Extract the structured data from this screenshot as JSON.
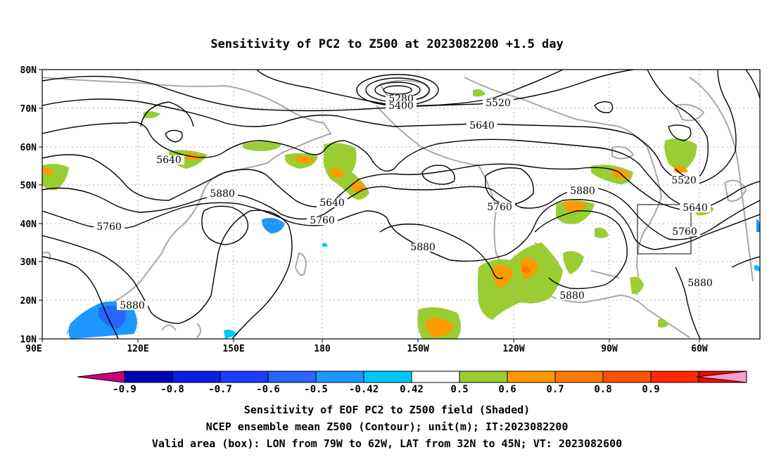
{
  "title": "Sensitivity of PC2 to Z500 at 2023082200 +1.5 day",
  "axes": {
    "lat_labels": [
      "80N",
      "70N",
      "60N",
      "50N",
      "40N",
      "30N",
      "20N",
      "10N"
    ],
    "lon_labels": [
      "90E",
      "120E",
      "150E",
      "180",
      "150W",
      "120W",
      "90W",
      "60W"
    ]
  },
  "contour_labels": [
    "5280",
    "5400",
    "5520",
    "5640",
    "5640",
    "5640",
    "5760",
    "5760",
    "5760",
    "5880",
    "5880",
    "5880",
    "5880",
    "5880",
    "5520",
    "5640",
    "5760",
    "5880"
  ],
  "colorbar": {
    "labels": [
      "-0.9",
      "-0.8",
      "-0.7",
      "-0.6",
      "-0.5",
      "-0.42",
      "0.42",
      "0.5",
      "0.6",
      "0.7",
      "0.8",
      "0.9"
    ],
    "colors": [
      "#c8007a",
      "#0000b4",
      "#0a1ee6",
      "#1e3cff",
      "#2864ff",
      "#1e96ff",
      "#00c8ff",
      "#ffffff",
      "#9acd32",
      "#ff9a00",
      "#ff7800",
      "#ff5000",
      "#ff2800",
      "#ff0000",
      "#ff9bc8"
    ]
  },
  "caption": [
    "Sensitivity of EOF PC2 to Z500 field (Shaded)",
    "NCEP ensemble mean Z500 (Contour); unit(m); IT:2023082200",
    "Valid area (box): LON from 79W to 62W, LAT from 32N to 45N; VT: 2023082600"
  ]
}
